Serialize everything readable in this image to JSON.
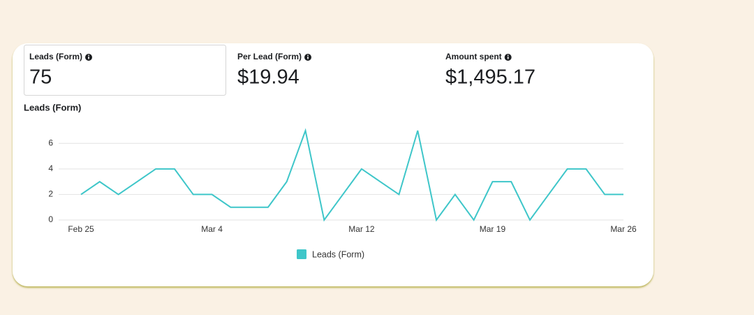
{
  "metrics": [
    {
      "label": "Leads (Form)",
      "value": "75"
    },
    {
      "label": "Per Lead (Form)",
      "value": "$19.94"
    },
    {
      "label": "Amount spent",
      "value": "$1,495.17"
    }
  ],
  "chart_data": {
    "type": "line",
    "title": "Leads (Form)",
    "categories": [
      "Feb 25",
      null,
      null,
      null,
      null,
      null,
      null,
      "Mar 4",
      null,
      null,
      null,
      null,
      null,
      null,
      null,
      "Mar 12",
      null,
      null,
      null,
      null,
      null,
      null,
      "Mar 19",
      null,
      null,
      null,
      null,
      null,
      null,
      "Mar 26"
    ],
    "series": [
      {
        "name": "Leads (Form)",
        "color": "#3ec6c9",
        "values": [
          2,
          3,
          2,
          3,
          4,
          4,
          2,
          2,
          1,
          1,
          1,
          3,
          7,
          0,
          2,
          4,
          3,
          2,
          7,
          0,
          2,
          0,
          3,
          3,
          0,
          2,
          4,
          4,
          2,
          2
        ]
      }
    ],
    "ylim": [
      0,
      7
    ],
    "yticks": [
      0,
      2,
      4,
      6
    ],
    "grid": true,
    "legend": "bottom"
  }
}
